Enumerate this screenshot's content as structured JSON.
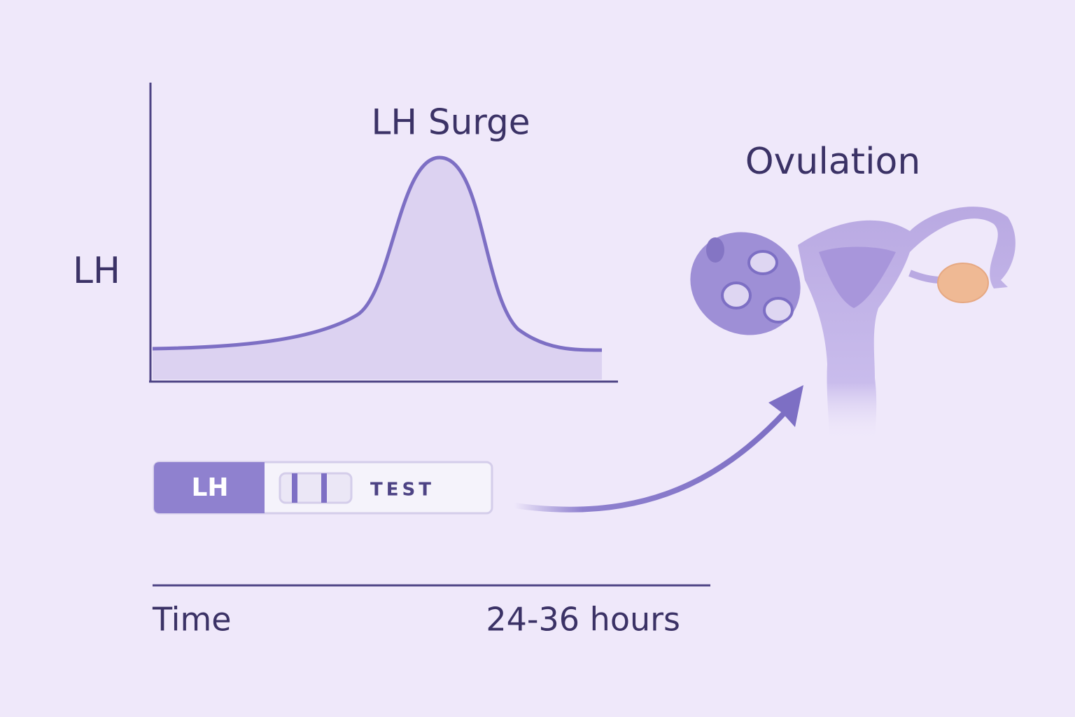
{
  "chart": {
    "title": "LH Surge",
    "y_label": "LH"
  },
  "ovulation": {
    "label": "Ovulation"
  },
  "test_strip": {
    "brand": "LH",
    "label": "TEST"
  },
  "timeline": {
    "start_label": "Time",
    "end_label": "24-36 hours"
  }
}
